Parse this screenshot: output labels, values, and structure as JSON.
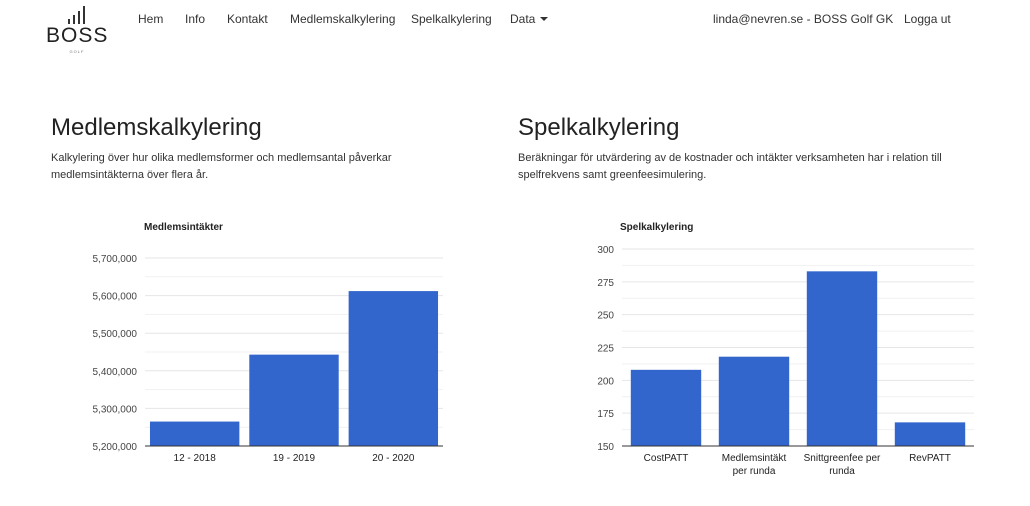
{
  "brand": {
    "name": "BOSS",
    "subtitle": "GOLF"
  },
  "nav": {
    "items": [
      {
        "label": "Hem"
      },
      {
        "label": "Info"
      },
      {
        "label": "Kontakt"
      },
      {
        "label": "Medlemskalkylering"
      },
      {
        "label": "Spelkalkylering"
      },
      {
        "label": "Data"
      }
    ],
    "user": "linda@nevren.se - BOSS Golf GK",
    "logout": "Logga ut"
  },
  "sections": {
    "left": {
      "title": "Medlemskalkylering",
      "description_line1": "Kalkylering över hur olika medlemsformer och medlemsantal påverkar",
      "description_line2": "medlemsintäkterna över flera år."
    },
    "right": {
      "title": "Spelkalkylering",
      "description_line1": "Beräkningar för utvärdering av de kostnader och intäkter verksamheten har i relation till",
      "description_line2": "spelfrekvens samt greenfeesimulering."
    }
  },
  "colors": {
    "bar": "#3366cc",
    "grid": "#e6e6e6",
    "axis": "#333333"
  },
  "chart_data": [
    {
      "type": "bar",
      "title": "Medlemsintäkter",
      "categories": [
        "12 - 2018",
        "19 - 2019",
        "20 - 2020"
      ],
      "values": [
        5265000,
        5443000,
        5612000
      ],
      "ylim": [
        5200000,
        5700000
      ],
      "yticks": [
        5200000,
        5300000,
        5400000,
        5500000,
        5600000,
        5700000
      ],
      "ytick_labels": [
        "5,200,000",
        "5,300,000",
        "5,400,000",
        "5,500,000",
        "5,600,000",
        "5,700,000"
      ],
      "grid": true
    },
    {
      "type": "bar",
      "title": "Spelkalkylering",
      "categories": [
        [
          "CostPATT"
        ],
        [
          "Medlemsintäkt",
          "per runda"
        ],
        [
          "Snittgreenfee per",
          "runda"
        ],
        [
          "RevPATT"
        ]
      ],
      "values": [
        208,
        218,
        283,
        168
      ],
      "ylim": [
        150,
        300
      ],
      "yticks": [
        150,
        175,
        200,
        225,
        250,
        275,
        300
      ],
      "ytick_labels": [
        "150",
        "175",
        "200",
        "225",
        "250",
        "275",
        "300"
      ],
      "grid": true
    }
  ]
}
